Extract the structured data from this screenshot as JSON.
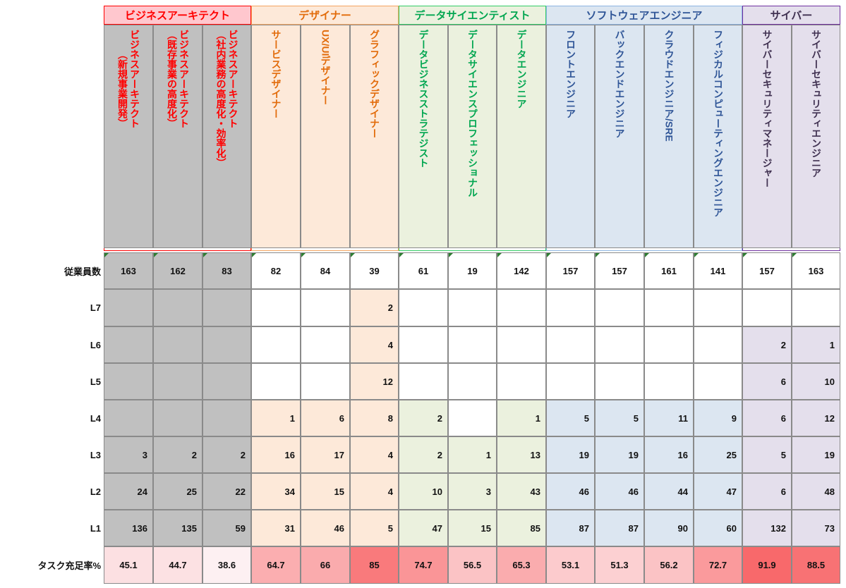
{
  "colors": {
    "border": "#8a8a8a",
    "gray_fill": "#c0c0c0",
    "rate_scale_low": "#fdf0f2",
    "rate_scale_high": "#f8696b"
  },
  "groups": [
    {
      "key": "biz",
      "label": "ビジネスアーキテクト",
      "text_color": "#ff0000",
      "header_bg": "#ffc7ce",
      "border": "#ff0000",
      "cell_bg": "#c0c0c0",
      "span": 3
    },
    {
      "key": "des",
      "label": "デザイナー",
      "text_color": "#e26b0a",
      "header_bg": "#fde9d9",
      "border": "#f4a460",
      "cell_bg": "#fde9d9",
      "span": 3
    },
    {
      "key": "ds",
      "label": "データサイエンティスト",
      "text_color": "#00a650",
      "header_bg": "#ebf1de",
      "border": "#33cc66",
      "cell_bg": "#ebf1de",
      "span": 3
    },
    {
      "key": "sw",
      "label": "ソフトウェアエンジニア",
      "text_color": "#2f5597",
      "header_bg": "#dce6f1",
      "border": "#8db4e2",
      "cell_bg": "#dce6f1",
      "span": 4
    },
    {
      "key": "cy",
      "label": "サイバー",
      "text_color": "#403151",
      "header_bg": "#e4dfec",
      "border": "#7030a0",
      "cell_bg": "#e4dfec",
      "span": 2
    }
  ],
  "roles": [
    {
      "group": "biz",
      "label": "ビジネスアーキテクト\n（新規事業開発）"
    },
    {
      "group": "biz",
      "label": "ビジネスアーキテクト\n（既存事業の高度化）"
    },
    {
      "group": "biz",
      "label": "ビジネスアーキテクト\n（社内業務の高度化・効率化）"
    },
    {
      "group": "des",
      "label": "サービスデザイナー"
    },
    {
      "group": "des",
      "label": "UX/UIデザイナー"
    },
    {
      "group": "des",
      "label": "グラフィックデザイナー"
    },
    {
      "group": "ds",
      "label": "データビジネスストラテジスト"
    },
    {
      "group": "ds",
      "label": "データサイエンスプロフェッショナル"
    },
    {
      "group": "ds",
      "label": "データエンジニア"
    },
    {
      "group": "sw",
      "label": "フロントエンジニア"
    },
    {
      "group": "sw",
      "label": "バックエンドエンジニア"
    },
    {
      "group": "sw",
      "label": "クラウドエンジニア/SRE"
    },
    {
      "group": "sw",
      "label": "フィジカルコンピューティングエンジニア"
    },
    {
      "group": "cy",
      "label": "サイバーセキュリティマネージャー"
    },
    {
      "group": "cy",
      "label": "サイバーセキュリティエンジニア"
    }
  ],
  "row_labels": {
    "employees": "従業員数",
    "levels": [
      "L7",
      "L6",
      "L5",
      "L4",
      "L3",
      "L2",
      "L1"
    ],
    "rate": "タスク充足率%"
  },
  "employees": [
    "163",
    "162",
    "83",
    "82",
    "84",
    "39",
    "61",
    "19",
    "142",
    "157",
    "157",
    "161",
    "141",
    "157",
    "163"
  ],
  "levels": {
    "L7": [
      "",
      "",
      "",
      "",
      "",
      "2",
      "",
      "",
      "",
      "",
      "",
      "",
      "",
      "",
      ""
    ],
    "L6": [
      "",
      "",
      "",
      "",
      "",
      "4",
      "",
      "",
      "",
      "",
      "",
      "",
      "",
      "2",
      "1"
    ],
    "L5": [
      "",
      "",
      "",
      "",
      "",
      "12",
      "",
      "",
      "",
      "",
      "",
      "",
      "",
      "6",
      "10"
    ],
    "L4": [
      "",
      "",
      "",
      "1",
      "6",
      "8",
      "2",
      "",
      "1",
      "5",
      "5",
      "11",
      "9",
      "6",
      "12"
    ],
    "L3": [
      "3",
      "2",
      "2",
      "16",
      "17",
      "4",
      "2",
      "1",
      "13",
      "19",
      "19",
      "16",
      "25",
      "5",
      "19"
    ],
    "L2": [
      "24",
      "25",
      "22",
      "34",
      "15",
      "4",
      "10",
      "3",
      "43",
      "46",
      "46",
      "44",
      "47",
      "6",
      "48"
    ],
    "L1": [
      "136",
      "135",
      "59",
      "31",
      "46",
      "5",
      "47",
      "15",
      "85",
      "87",
      "87",
      "90",
      "60",
      "132",
      "73"
    ]
  },
  "task_rate": [
    "45.1",
    "44.7",
    "38.6",
    "64.7",
    "66",
    "85",
    "74.7",
    "56.5",
    "65.3",
    "53.1",
    "51.3",
    "56.2",
    "72.7",
    "91.9",
    "88.5"
  ]
}
